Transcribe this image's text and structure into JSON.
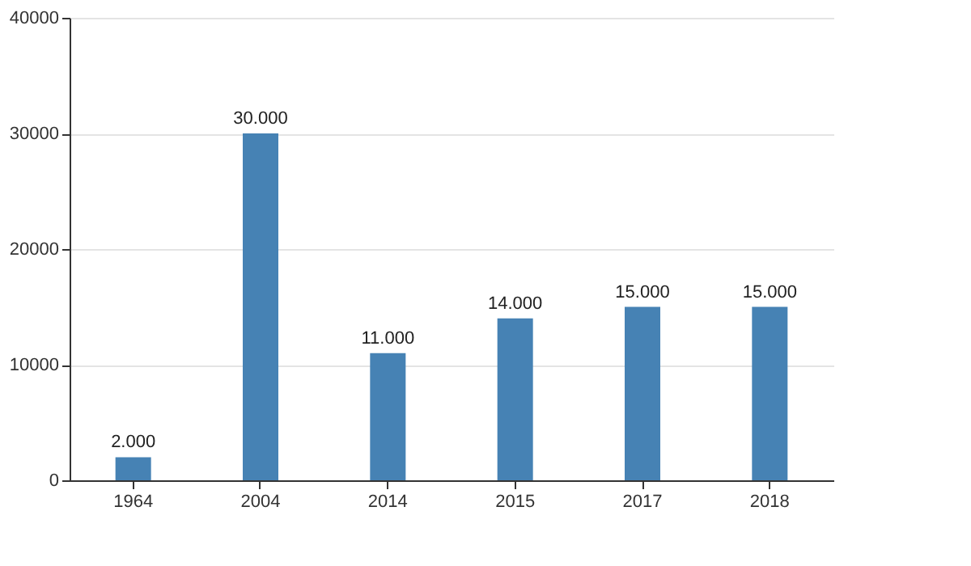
{
  "chart_data": {
    "type": "bar",
    "categories": [
      "1964",
      "2004",
      "2014",
      "2015",
      "2017",
      "2018"
    ],
    "values": [
      2000,
      30000,
      11000,
      14000,
      15000,
      15000
    ],
    "value_labels": [
      "2.000",
      "30.000",
      "11.000",
      "14.000",
      "15.000",
      "15.000"
    ],
    "color": "#4682b4",
    "ylim": [
      0,
      40000
    ],
    "yticks": [
      0,
      10000,
      20000,
      30000,
      40000
    ],
    "grid": "y",
    "legend": false
  }
}
